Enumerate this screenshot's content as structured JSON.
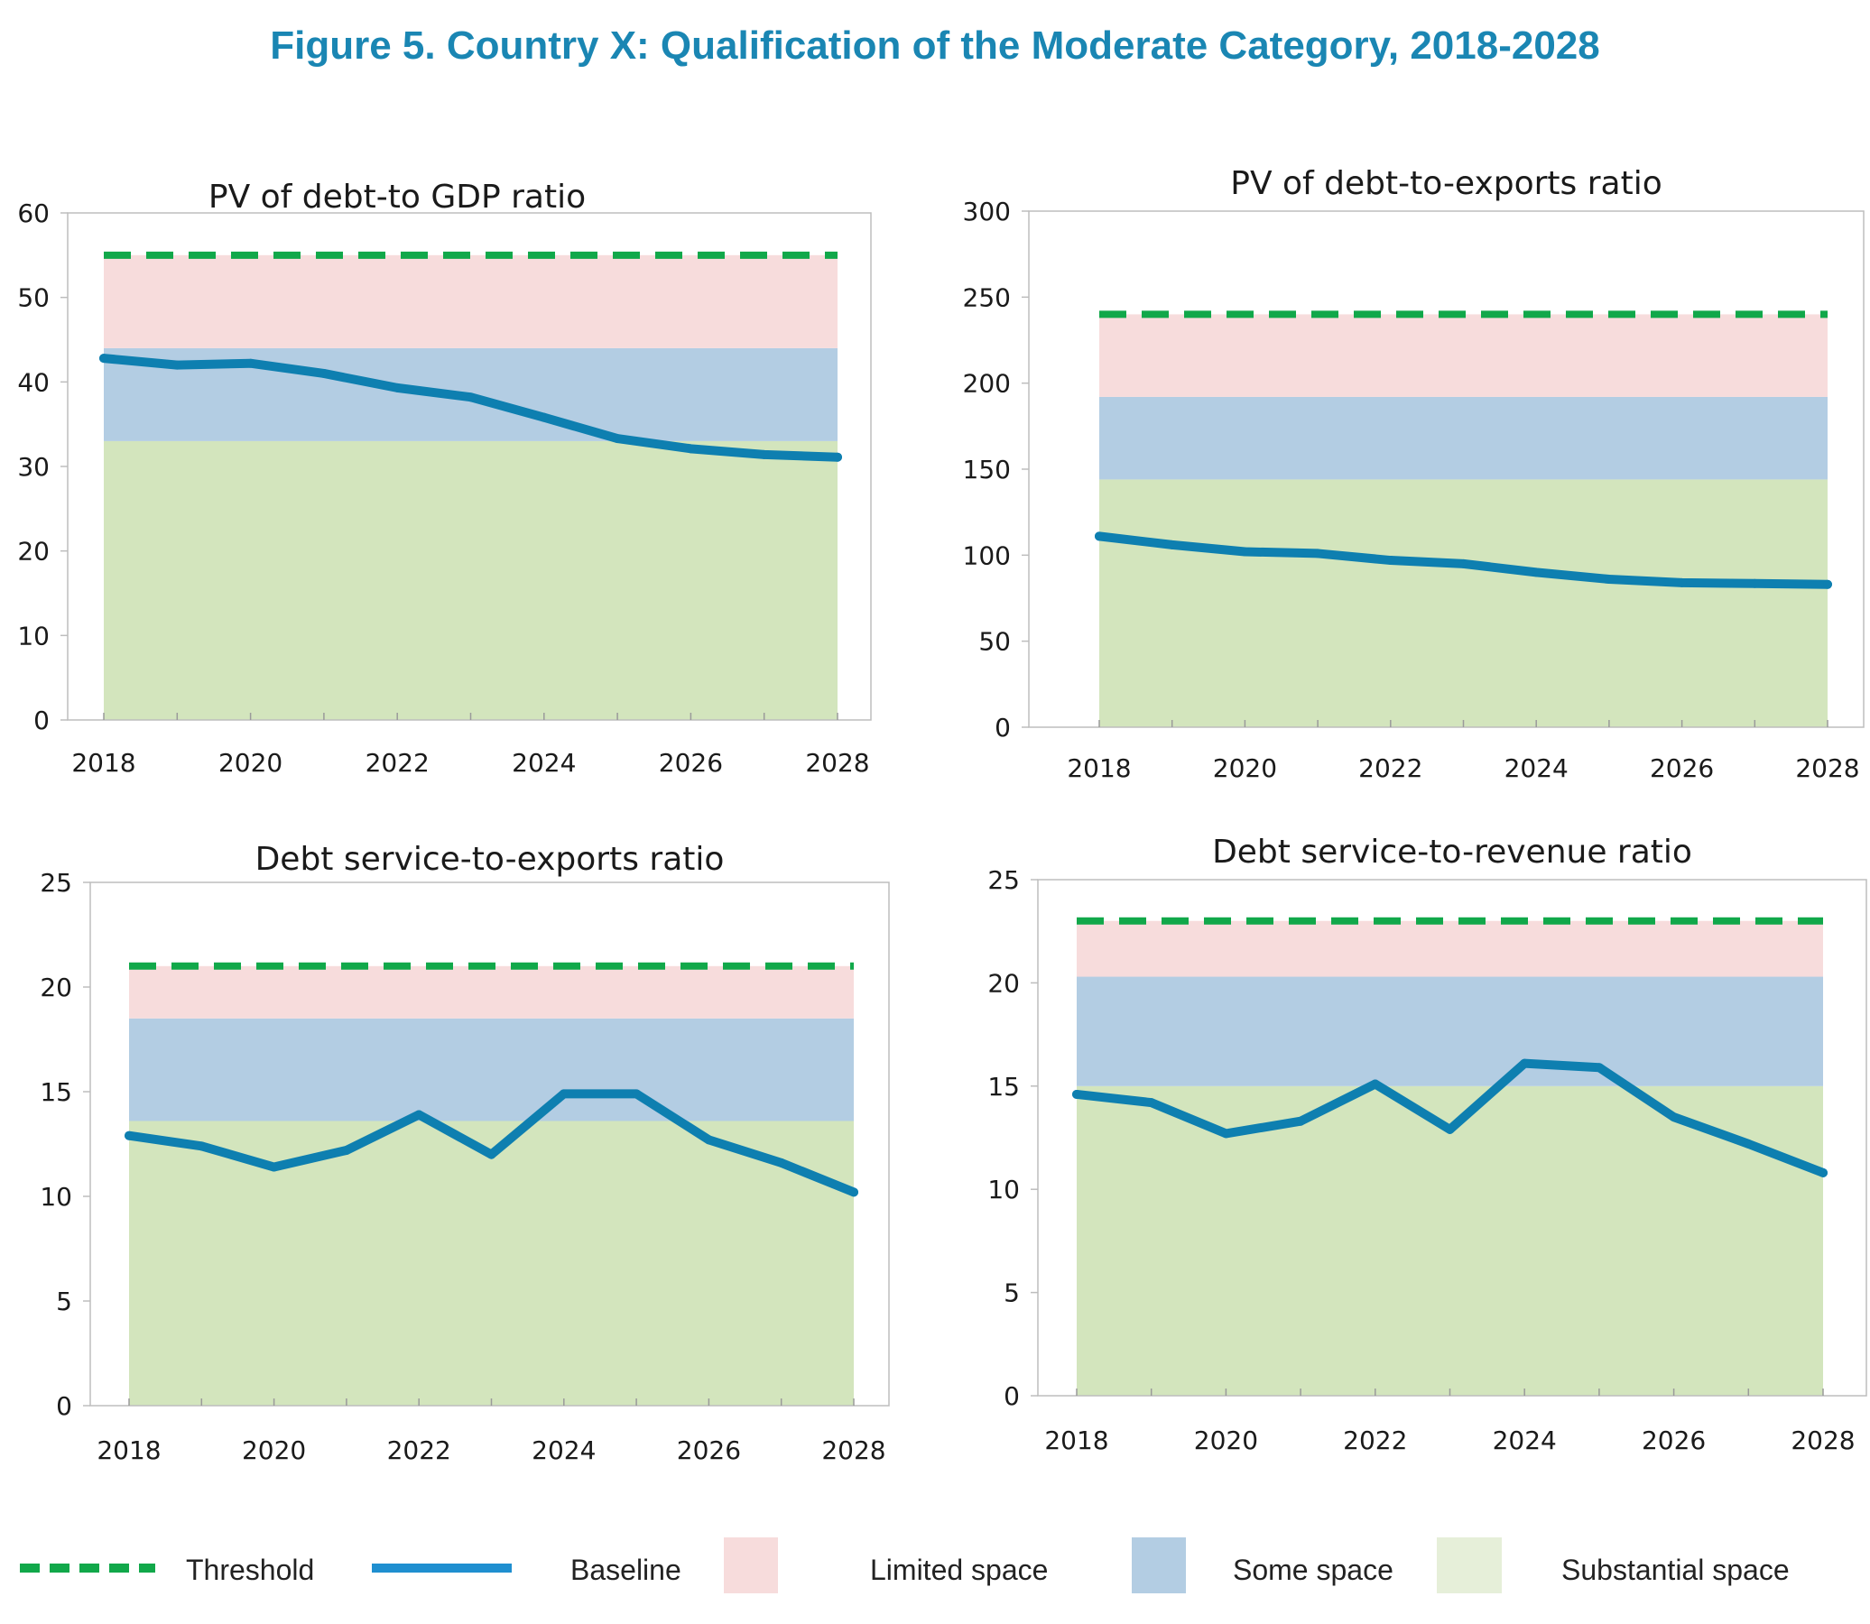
{
  "title": "Figure 5. Country X: Qualification of the Moderate Category, 2018-2028",
  "colors": {
    "title": "#1a86b3",
    "threshold": "#11a84a",
    "baseline": "#0e7fb0",
    "limited": "#f7dcdc",
    "some": "#b3cde3",
    "substantial": "#d3e5bd",
    "substantial_legend": "#e6efd9"
  },
  "legend": {
    "threshold": "Threshold",
    "baseline": "Baseline",
    "limited": "Limited space",
    "some": "Some space",
    "substantial": "Substantial space"
  },
  "chart_data": [
    {
      "type": "line",
      "title": "PV of debt-to GDP ratio",
      "x": [
        2018,
        2019,
        2020,
        2021,
        2022,
        2023,
        2024,
        2025,
        2026,
        2027,
        2028
      ],
      "x_tick_labels": [
        "2018",
        "2020",
        "2022",
        "2024",
        "2026",
        "2028"
      ],
      "ylim": [
        0,
        60
      ],
      "y_ticks": [
        0,
        10,
        20,
        30,
        40,
        50,
        60
      ],
      "series": [
        {
          "name": "Baseline",
          "values": [
            42.8,
            42.0,
            42.2,
            41.0,
            39.3,
            38.2,
            35.8,
            33.3,
            32.1,
            31.4,
            31.1
          ]
        },
        {
          "name": "Threshold",
          "values": [
            55,
            55,
            55,
            55,
            55,
            55,
            55,
            55,
            55,
            55,
            55
          ]
        }
      ],
      "bands": {
        "substantial": [
          0,
          33
        ],
        "some": [
          33,
          44
        ],
        "limited": [
          44,
          55
        ]
      }
    },
    {
      "type": "line",
      "title": "PV of debt-to-exports ratio",
      "x": [
        2018,
        2019,
        2020,
        2021,
        2022,
        2023,
        2024,
        2025,
        2026,
        2027,
        2028
      ],
      "x_tick_labels": [
        "2018",
        "2020",
        "2022",
        "2024",
        "2026",
        "2028"
      ],
      "ylim": [
        0,
        300
      ],
      "y_ticks": [
        0,
        50,
        100,
        150,
        200,
        250,
        300
      ],
      "series": [
        {
          "name": "Baseline",
          "values": [
            111,
            106,
            102,
            101,
            97,
            95,
            90,
            86,
            84,
            83.5,
            83
          ]
        },
        {
          "name": "Threshold",
          "values": [
            240,
            240,
            240,
            240,
            240,
            240,
            240,
            240,
            240,
            240,
            240
          ]
        }
      ],
      "bands": {
        "substantial": [
          0,
          144
        ],
        "some": [
          144,
          192
        ],
        "limited": [
          192,
          240
        ]
      }
    },
    {
      "type": "line",
      "title": "Debt service-to-exports ratio",
      "x": [
        2018,
        2019,
        2020,
        2021,
        2022,
        2023,
        2024,
        2025,
        2026,
        2027,
        2028
      ],
      "x_tick_labels": [
        "2018",
        "2020",
        "2022",
        "2024",
        "2026",
        "2028"
      ],
      "ylim": [
        0,
        25
      ],
      "y_ticks": [
        0,
        5,
        10,
        15,
        20,
        25
      ],
      "series": [
        {
          "name": "Baseline",
          "values": [
            12.9,
            12.4,
            11.4,
            12.2,
            13.9,
            12.0,
            14.9,
            14.9,
            12.7,
            11.6,
            10.2
          ]
        },
        {
          "name": "Threshold",
          "values": [
            21,
            21,
            21,
            21,
            21,
            21,
            21,
            21,
            21,
            21,
            21
          ]
        }
      ],
      "bands": {
        "substantial": [
          0,
          13.6
        ],
        "some": [
          13.6,
          18.5
        ],
        "limited": [
          18.5,
          21
        ]
      }
    },
    {
      "type": "line",
      "title": "Debt service-to-revenue ratio",
      "x": [
        2018,
        2019,
        2020,
        2021,
        2022,
        2023,
        2024,
        2025,
        2026,
        2027,
        2028
      ],
      "x_tick_labels": [
        "2018",
        "2020",
        "2022",
        "2024",
        "2026",
        "2028"
      ],
      "ylim": [
        0,
        25
      ],
      "y_ticks": [
        0,
        5,
        10,
        15,
        20,
        25
      ],
      "series": [
        {
          "name": "Baseline",
          "values": [
            14.6,
            14.2,
            12.7,
            13.3,
            15.1,
            12.9,
            16.1,
            15.9,
            13.5,
            12.2,
            10.8
          ]
        },
        {
          "name": "Threshold",
          "values": [
            23,
            23,
            23,
            23,
            23,
            23,
            23,
            23,
            23,
            23,
            23
          ]
        }
      ],
      "bands": {
        "substantial": [
          0,
          15
        ],
        "some": [
          15,
          20.3
        ],
        "limited": [
          20.3,
          23
        ]
      }
    }
  ]
}
